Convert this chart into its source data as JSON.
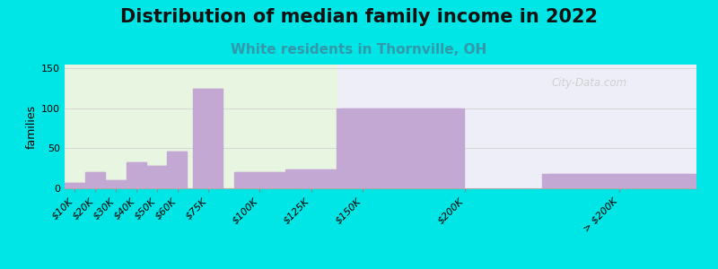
{
  "title": "Distribution of median family income in 2022",
  "subtitle": "White residents in Thornville, OH",
  "ylabel": "families",
  "bar_color": "#c4a8d4",
  "background_outer": "#00e5e5",
  "background_plot_left": "#e8f5e0",
  "background_plot_right": "#eeeef8",
  "title_fontsize": 15,
  "subtitle_fontsize": 11,
  "subtitle_color": "#3399aa",
  "ylabel_fontsize": 9,
  "tick_fontsize": 8,
  "yticks": [
    0,
    50,
    100,
    150
  ],
  "ylim": [
    0,
    155
  ],
  "watermark": "City-Data.com",
  "grid_color": "#d8d8d8",
  "tick_positions": [
    10,
    20,
    30,
    40,
    50,
    60,
    75,
    100,
    125,
    150,
    200,
    275
  ],
  "tick_labels": [
    "$10K",
    "$20K",
    "$30K",
    "$40K",
    "$50K",
    "$60K",
    "$75K",
    "$100K",
    "$125K",
    "$150K",
    "$200K",
    "> $200K"
  ],
  "bar_lefts": [
    5,
    15,
    25,
    35,
    45,
    55,
    67.5,
    87.5,
    112.5,
    137.5,
    212.5,
    237.5
  ],
  "bar_widths": [
    10,
    10,
    10,
    10,
    10,
    10,
    15,
    25,
    25,
    62.5,
    0,
    75
  ],
  "values": [
    7,
    20,
    10,
    33,
    28,
    46,
    125,
    20,
    24,
    100,
    0,
    18
  ]
}
